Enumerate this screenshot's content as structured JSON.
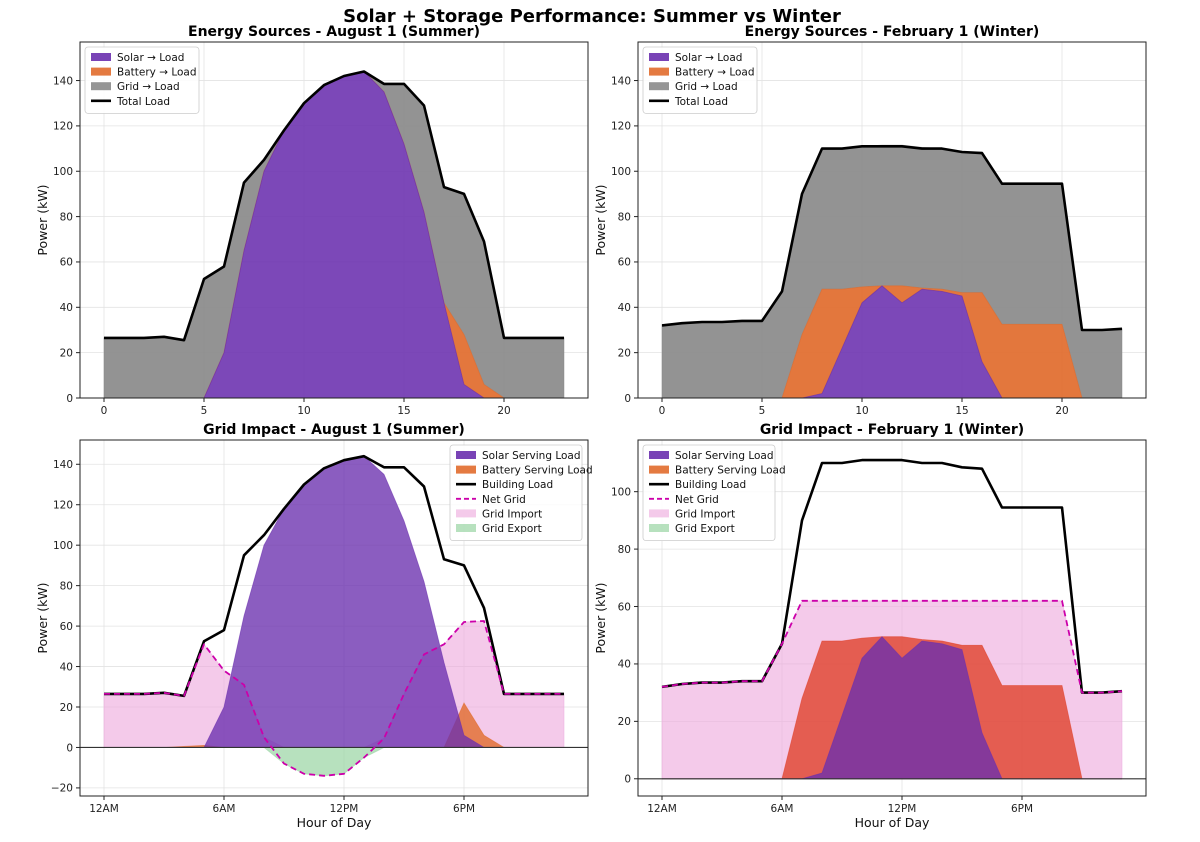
{
  "figure": {
    "title": "Solar + Storage Performance: Summer vs Winter"
  },
  "colors": {
    "solar": "#6a2fae",
    "battery": "#e16b2c",
    "grid_src": "#8a8a8a",
    "load": "#000000",
    "net_grid": "#cc00aa",
    "grid_import": "#eda9dd",
    "grid_export": "#9fd7a8",
    "battery_dark": "#e0412a"
  },
  "chart_data": [
    {
      "id": "p1",
      "type": "area",
      "title": "Energy Sources - August 1 (Summer)",
      "xlabel": "",
      "ylabel": "Power (kW)",
      "xlim": [
        -1.2,
        24.2
      ],
      "ylim": [
        0,
        157
      ],
      "xticks": [
        0,
        5,
        10,
        15,
        20
      ],
      "xticklabels": [
        "0",
        "5",
        "10",
        "15",
        "20"
      ],
      "yticks": [
        0,
        20,
        40,
        60,
        80,
        100,
        120,
        140
      ],
      "yticklabels": [
        "0",
        "20",
        "40",
        "60",
        "80",
        "100",
        "120",
        "140"
      ],
      "legend_position": "top-left",
      "legend": [
        "Solar → Load",
        "Battery → Load",
        "Grid → Load",
        "Total Load"
      ],
      "x": [
        0,
        1,
        2,
        3,
        4,
        5,
        6,
        7,
        8,
        9,
        10,
        11,
        12,
        13,
        14,
        15,
        16,
        17,
        18,
        19,
        20,
        21,
        22,
        23
      ],
      "series": [
        {
          "name": "Solar → Load",
          "values": [
            0,
            0,
            0,
            0,
            0,
            0,
            20,
            65,
            100,
            118,
            130,
            138,
            142,
            144,
            135,
            112,
            82,
            42,
            6,
            0,
            0,
            0,
            0,
            0
          ]
        },
        {
          "name": "Battery → Load",
          "values": [
            0,
            0,
            0,
            0,
            0,
            0,
            0,
            0,
            0,
            0,
            0,
            0,
            0,
            0,
            0,
            0,
            0,
            0,
            22,
            6,
            0,
            0,
            0,
            0
          ]
        },
        {
          "name": "Grid → Load",
          "values": [
            26.5,
            26.5,
            26.5,
            27,
            25.5,
            52.5,
            38,
            30,
            5,
            0,
            0,
            0,
            0,
            0,
            3.5,
            26.5,
            47,
            51,
            62,
            63,
            26.5,
            26.5,
            26.5,
            26.5
          ]
        },
        {
          "name": "Total Load",
          "values": [
            26.5,
            26.5,
            26.5,
            27,
            25.5,
            52.5,
            58,
            95,
            105,
            118,
            130,
            138,
            142,
            144,
            138.5,
            138.5,
            129,
            93,
            90,
            69,
            26.5,
            26.5,
            26.5,
            26.5
          ]
        }
      ]
    },
    {
      "id": "p2",
      "type": "area",
      "title": "Energy Sources - February 1 (Winter)",
      "xlabel": "",
      "ylabel": "Power (kW)",
      "xlim": [
        -1.2,
        24.2
      ],
      "ylim": [
        0,
        157
      ],
      "xticks": [
        0,
        5,
        10,
        15,
        20
      ],
      "xticklabels": [
        "0",
        "5",
        "10",
        "15",
        "20"
      ],
      "yticks": [
        0,
        20,
        40,
        60,
        80,
        100,
        120,
        140
      ],
      "yticklabels": [
        "0",
        "20",
        "40",
        "60",
        "80",
        "100",
        "120",
        "140"
      ],
      "legend_position": "top-left",
      "legend": [
        "Solar → Load",
        "Battery → Load",
        "Grid → Load",
        "Total Load"
      ],
      "x": [
        0,
        1,
        2,
        3,
        4,
        5,
        6,
        7,
        8,
        9,
        10,
        11,
        12,
        13,
        14,
        15,
        16,
        17,
        18,
        19,
        20,
        21,
        22,
        23
      ],
      "series": [
        {
          "name": "Solar → Load",
          "values": [
            0,
            0,
            0,
            0,
            0,
            0,
            0,
            0,
            2,
            22,
            42,
            49.5,
            42,
            48,
            47,
            45,
            16,
            0,
            0,
            0,
            0,
            0,
            0,
            0
          ]
        },
        {
          "name": "Battery → Load",
          "values": [
            0,
            0,
            0,
            0,
            0,
            0,
            0,
            28,
            46,
            26,
            7,
            0,
            7.5,
            0.5,
            1,
            1.5,
            30.5,
            32.5,
            32.5,
            32.5,
            32.5,
            0,
            0,
            0
          ]
        },
        {
          "name": "Grid → Load",
          "values": [
            32,
            33,
            33.5,
            33.5,
            34,
            34,
            47,
            62,
            62,
            62,
            62,
            62,
            62,
            62,
            62,
            62,
            62,
            62,
            62,
            62,
            62,
            30,
            30,
            30.5
          ]
        },
        {
          "name": "Total Load",
          "values": [
            32,
            33,
            33.5,
            33.5,
            34,
            34,
            47,
            90,
            110,
            110,
            111,
            111,
            111,
            110,
            110,
            108.5,
            108,
            94.5,
            94.5,
            94.5,
            94.5,
            30,
            30,
            30.5
          ]
        }
      ]
    },
    {
      "id": "p3",
      "type": "area",
      "title": "Grid Impact - August 1 (Summer)",
      "xlabel": "Hour of Day",
      "ylabel": "Power (kW)",
      "xlim": [
        -1.2,
        24.2
      ],
      "ylim": [
        -24,
        152
      ],
      "xticks": [
        0,
        6,
        12,
        18
      ],
      "xticklabels": [
        "12AM",
        "6AM",
        "12PM",
        "6PM"
      ],
      "yticks": [
        -20,
        0,
        20,
        40,
        60,
        80,
        100,
        120,
        140
      ],
      "yticklabels": [
        "−20",
        "0",
        "20",
        "40",
        "60",
        "80",
        "100",
        "120",
        "140"
      ],
      "legend_position": "top-right",
      "legend": [
        "Solar Serving Load",
        "Battery Serving Load",
        "Building Load",
        "Net Grid",
        "Grid Import",
        "Grid Export"
      ],
      "x": [
        0,
        1,
        2,
        3,
        4,
        5,
        6,
        7,
        8,
        9,
        10,
        11,
        12,
        13,
        14,
        15,
        16,
        17,
        18,
        19,
        20,
        21,
        22,
        23
      ],
      "series": [
        {
          "name": "Solar Serving Load",
          "values": [
            0,
            0,
            0,
            0,
            0,
            0,
            20,
            65,
            100,
            118,
            130,
            138,
            142,
            144,
            135,
            112,
            82,
            42,
            6,
            0,
            0,
            0,
            0,
            0
          ]
        },
        {
          "name": "Battery Serving Load",
          "values": [
            0,
            0,
            0,
            0,
            0.5,
            1,
            0,
            0,
            0,
            0,
            0,
            0,
            0,
            0,
            0,
            0,
            0,
            0,
            22,
            6,
            0,
            0,
            0,
            0
          ]
        },
        {
          "name": "Building Load",
          "values": [
            26.5,
            26.5,
            26.5,
            27,
            25.5,
            52.5,
            58,
            95,
            105,
            118,
            130,
            138,
            142,
            144,
            138.5,
            138.5,
            129,
            93,
            90,
            69,
            26.5,
            26.5,
            26.5,
            26.5
          ]
        },
        {
          "name": "Net Grid",
          "values": [
            26.5,
            26.5,
            26.5,
            27,
            25.5,
            51,
            38,
            31,
            5,
            -8,
            -13,
            -14,
            -13,
            -5,
            4.5,
            26.5,
            46,
            51,
            62,
            62.5,
            26.5,
            26.5,
            26.5,
            26.5
          ]
        }
      ]
    },
    {
      "id": "p4",
      "type": "area",
      "title": "Grid Impact - February 1 (Winter)",
      "xlabel": "Hour of Day",
      "ylabel": "Power (kW)",
      "xlim": [
        -1.2,
        24.2
      ],
      "ylim": [
        -6,
        118
      ],
      "xticks": [
        0,
        6,
        12,
        18
      ],
      "xticklabels": [
        "12AM",
        "6AM",
        "12PM",
        "6PM"
      ],
      "yticks": [
        0,
        20,
        40,
        60,
        80,
        100
      ],
      "yticklabels": [
        "0",
        "20",
        "40",
        "60",
        "80",
        "100"
      ],
      "legend_position": "top-left",
      "legend": [
        "Solar Serving Load",
        "Battery Serving Load",
        "Building Load",
        "Net Grid",
        "Grid Import",
        "Grid Export"
      ],
      "x": [
        0,
        1,
        2,
        3,
        4,
        5,
        6,
        7,
        8,
        9,
        10,
        11,
        12,
        13,
        14,
        15,
        16,
        17,
        18,
        19,
        20,
        21,
        22,
        23
      ],
      "series": [
        {
          "name": "Solar Serving Load",
          "values": [
            0,
            0,
            0,
            0,
            0,
            0,
            0,
            0,
            2,
            22,
            42,
            49.5,
            42,
            48,
            47,
            45,
            16,
            0,
            0,
            0,
            0,
            0,
            0,
            0
          ]
        },
        {
          "name": "Battery Serving Load",
          "values": [
            0,
            0,
            0,
            0,
            0,
            0,
            0,
            28,
            48,
            48,
            49,
            49.5,
            49.5,
            48.5,
            48,
            46.5,
            46.5,
            32.5,
            32.5,
            32.5,
            32.5,
            0,
            0,
            0
          ]
        },
        {
          "name": "Building Load",
          "values": [
            32,
            33,
            33.5,
            33.5,
            34,
            34,
            47,
            90,
            110,
            110,
            111,
            111,
            111,
            110,
            110,
            108.5,
            108,
            94.5,
            94.5,
            94.5,
            94.5,
            30,
            30,
            30.5
          ]
        },
        {
          "name": "Net Grid",
          "values": [
            32,
            33,
            33.5,
            33.5,
            34,
            34,
            47,
            62,
            62,
            62,
            62,
            62,
            62,
            62,
            62,
            62,
            62,
            62,
            62,
            62,
            62,
            30,
            30,
            30.5
          ]
        }
      ]
    }
  ]
}
